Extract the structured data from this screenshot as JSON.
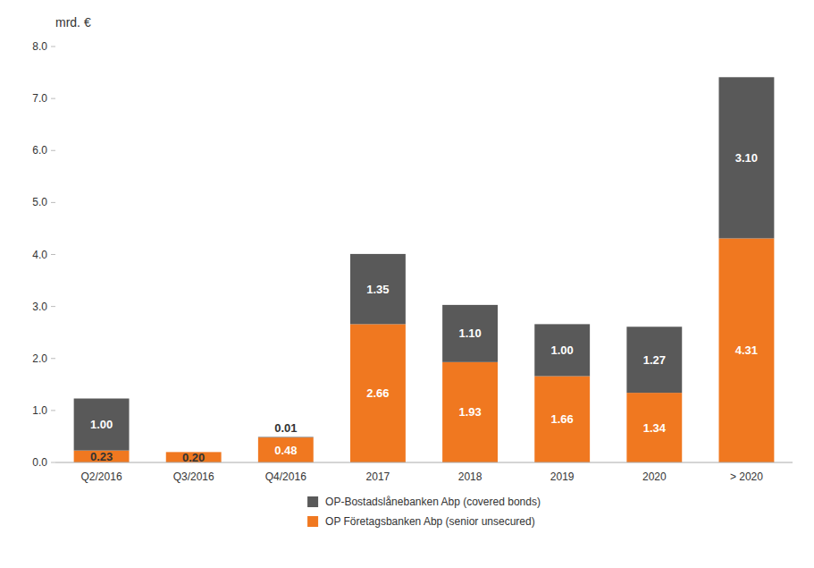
{
  "chart_data": {
    "type": "bar",
    "stacked": true,
    "ylabel": "mrd. €",
    "categories": [
      "Q2/2016",
      "Q3/2016",
      "Q4/2016",
      "2017",
      "2018",
      "2019",
      "2020",
      "> 2020"
    ],
    "series": [
      {
        "name": "OP Företagsbanken Abp (senior unsecured)",
        "color": "#F07820",
        "values": [
          0.23,
          0.2,
          0.48,
          2.66,
          1.93,
          1.66,
          1.34,
          4.31
        ],
        "value_labels": [
          "0.23",
          "0.20",
          "0.48",
          "2.66",
          "1.93",
          "1.66",
          "1.34",
          "4.31"
        ]
      },
      {
        "name": "OP-Bostadslånebanken Abp (covered bonds)",
        "color": "#595959",
        "values": [
          1.0,
          0.0,
          0.01,
          1.35,
          1.1,
          1.0,
          1.27,
          3.1
        ],
        "value_labels": [
          "1.00",
          null,
          "0.01",
          "1.35",
          "1.10",
          "1.00",
          "1.27",
          "3.10"
        ]
      }
    ],
    "ylim": [
      0,
      8.0
    ],
    "yticks": [
      {
        "value": 0.0,
        "label": "0.0"
      },
      {
        "value": 1.0,
        "label": "1.0"
      },
      {
        "value": 2.0,
        "label": "2.0"
      },
      {
        "value": 3.0,
        "label": "3.0"
      },
      {
        "value": 4.0,
        "label": "4.0"
      },
      {
        "value": 5.0,
        "label": "5.0"
      },
      {
        "value": 6.0,
        "label": "6.0"
      },
      {
        "value": 7.0,
        "label": "7.0"
      },
      {
        "value": 8.0,
        "label": "8.0"
      }
    ],
    "grid": false,
    "data_labels": true,
    "legend": "bottom"
  }
}
